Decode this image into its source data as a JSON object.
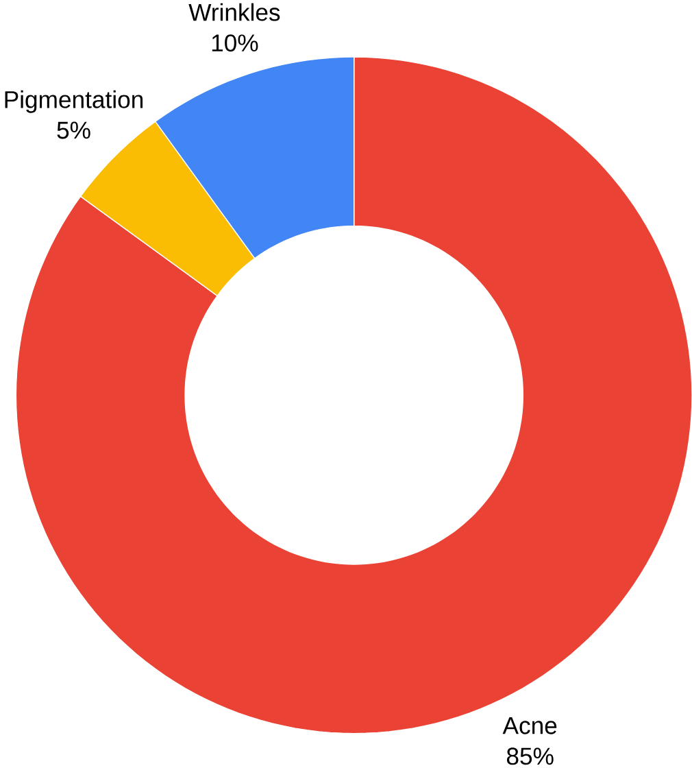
{
  "chart_data": {
    "type": "donut",
    "categories": [
      "Acne",
      "Pigmentation",
      "Wrinkles"
    ],
    "values": [
      85,
      5,
      10
    ],
    "colors": [
      "#ea4335",
      "#fbbc04",
      "#4285f4"
    ],
    "value_labels": [
      "85%",
      "5%",
      "10%"
    ]
  }
}
